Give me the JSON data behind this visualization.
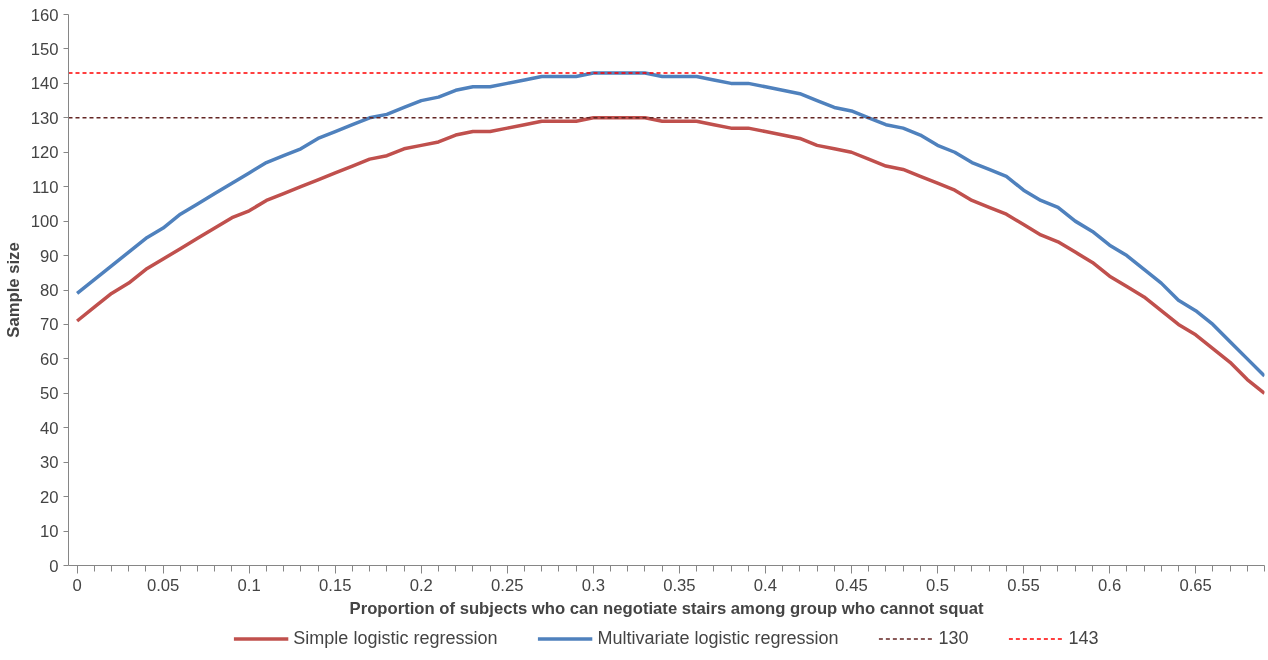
{
  "chart_data": {
    "type": "line",
    "xlabel": "Proportion of subjects who can negotiate stairs among group who cannot squat",
    "ylabel": "Sample size",
    "x": [
      0,
      0.01,
      0.02,
      0.03,
      0.04,
      0.05,
      0.06,
      0.07,
      0.08,
      0.09,
      0.1,
      0.11,
      0.12,
      0.13,
      0.14,
      0.15,
      0.16,
      0.17,
      0.18,
      0.19,
      0.2,
      0.21,
      0.22,
      0.23,
      0.24,
      0.25,
      0.26,
      0.27,
      0.28,
      0.29,
      0.3,
      0.31,
      0.32,
      0.33,
      0.34,
      0.35,
      0.36,
      0.37,
      0.38,
      0.39,
      0.4,
      0.41,
      0.42,
      0.43,
      0.44,
      0.45,
      0.46,
      0.47,
      0.48,
      0.49,
      0.5,
      0.51,
      0.52,
      0.53,
      0.54,
      0.55,
      0.56,
      0.57,
      0.58,
      0.59,
      0.6,
      0.61,
      0.62,
      0.63,
      0.64,
      0.65,
      0.66,
      0.67,
      0.68,
      0.69
    ],
    "series": [
      {
        "name": "Simple logistic regression",
        "color": "#c0504d",
        "values": [
          71,
          75,
          79,
          82,
          86,
          89,
          92,
          95,
          98,
          101,
          103,
          106,
          108,
          110,
          112,
          114,
          116,
          118,
          119,
          121,
          122,
          123,
          125,
          126,
          126,
          127,
          128,
          129,
          129,
          129,
          130,
          130,
          130,
          130,
          129,
          129,
          129,
          128,
          127,
          127,
          126,
          125,
          124,
          122,
          121,
          120,
          118,
          116,
          115,
          113,
          111,
          109,
          106,
          104,
          102,
          99,
          96,
          94,
          91,
          88,
          84,
          81,
          78,
          74,
          70,
          67,
          63,
          59,
          54,
          50
        ]
      },
      {
        "name": "Multivariate logistic regression",
        "color": "#4f81bd",
        "values": [
          79,
          83,
          87,
          91,
          95,
          98,
          102,
          105,
          108,
          111,
          114,
          117,
          119,
          121,
          124,
          126,
          128,
          130,
          131,
          133,
          135,
          136,
          138,
          139,
          139,
          140,
          141,
          142,
          142,
          142,
          143,
          143,
          143,
          143,
          142,
          142,
          142,
          141,
          140,
          140,
          139,
          138,
          137,
          135,
          133,
          132,
          130,
          128,
          127,
          125,
          122,
          120,
          117,
          115,
          113,
          109,
          106,
          104,
          100,
          97,
          93,
          90,
          86,
          82,
          77,
          74,
          70,
          65,
          60,
          55
        ]
      }
    ],
    "ref_lines": [
      {
        "axis": "y",
        "value": 130,
        "label": "130",
        "color": "#632523",
        "line_style": "dashed"
      },
      {
        "axis": "y",
        "value": 143,
        "label": "143",
        "color": "#ff0000",
        "line_style": "dashed"
      }
    ],
    "xlim": [
      -0.005,
      0.69
    ],
    "ylim": [
      0,
      160
    ],
    "xticks": [
      0,
      0.05,
      0.1,
      0.15,
      0.2,
      0.25,
      0.3,
      0.35,
      0.4,
      0.45,
      0.5,
      0.55,
      0.6,
      0.65
    ],
    "yticks": [
      0,
      10,
      20,
      30,
      40,
      50,
      60,
      70,
      80,
      90,
      100,
      110,
      120,
      130,
      140,
      150,
      160
    ],
    "grid": false,
    "legend": "bottom",
    "marker": "none",
    "line_style": "solid"
  }
}
